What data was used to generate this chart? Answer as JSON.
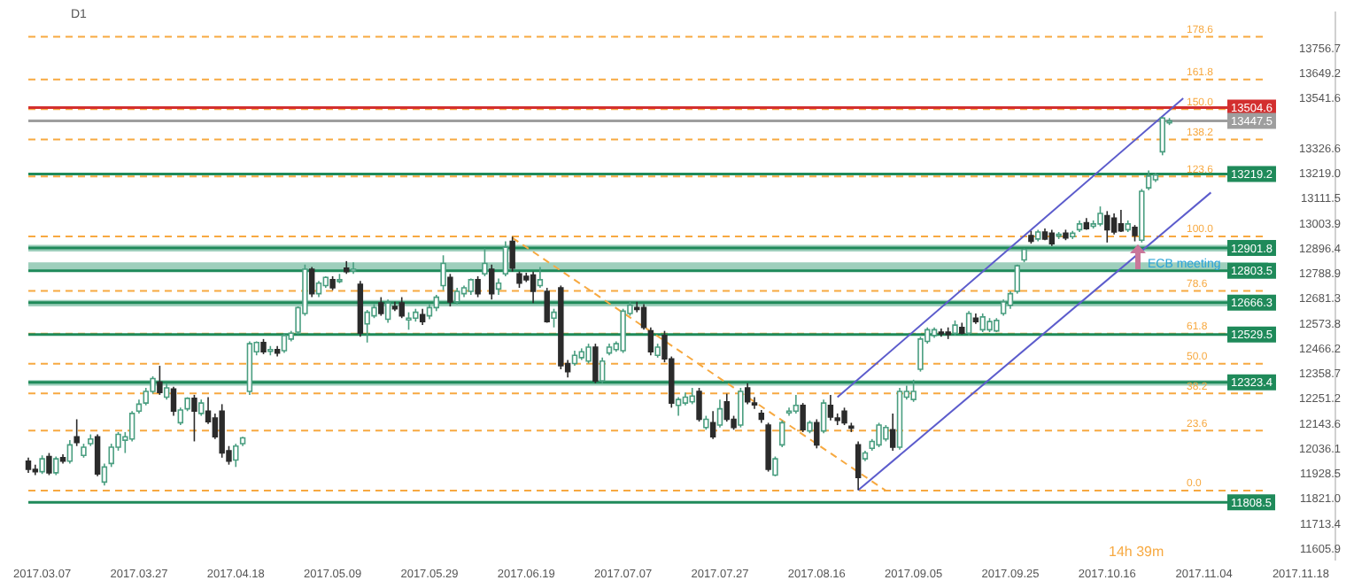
{
  "chart_data": {
    "type": "candlestick",
    "categories": [
      null,
      null,
      "2017.03.07",
      null,
      null,
      null,
      null,
      null,
      null,
      null,
      null,
      null,
      null,
      null,
      null,
      null,
      "2017.03.27",
      null,
      null,
      null,
      null,
      null,
      null,
      null,
      null,
      null,
      null,
      null,
      null,
      null,
      "2017.04.18",
      null,
      null,
      null,
      null,
      null,
      null,
      null,
      null,
      null,
      null,
      null,
      null,
      null,
      "2017.05.09",
      null,
      null,
      null,
      null,
      null,
      null,
      null,
      null,
      null,
      null,
      null,
      null,
      null,
      "2017.05.29",
      null,
      null,
      null,
      null,
      null,
      null,
      null,
      null,
      null,
      null,
      null,
      null,
      null,
      "2017.06.19",
      null,
      null,
      null,
      null,
      null,
      null,
      null,
      null,
      null,
      null,
      null,
      null,
      null,
      "2017.07.07",
      null,
      null,
      null,
      null,
      null,
      null,
      null,
      null,
      null,
      null,
      null,
      null,
      null,
      "2017.07.27",
      null,
      null,
      null,
      null,
      null,
      null,
      null,
      null,
      null,
      null,
      null,
      null,
      null,
      "2017.08.16",
      null,
      null,
      null,
      null,
      null,
      null,
      null,
      null,
      null,
      null,
      null,
      null,
      null,
      "2017.09.05",
      null,
      null,
      null,
      null,
      null,
      null,
      null,
      null,
      null,
      null,
      null,
      null,
      null,
      "2017.09.25",
      null,
      null,
      null,
      null,
      null,
      null,
      null,
      null,
      null,
      null,
      null,
      null,
      null,
      "2017.10.16",
      null,
      null,
      null,
      null,
      null,
      null,
      null,
      null,
      null,
      null,
      null,
      null,
      null,
      "2017.11.04",
      null,
      null,
      null,
      null,
      null,
      null,
      null,
      null,
      null,
      null,
      null,
      null,
      null,
      "2017.11.18",
      null,
      null,
      null,
      null,
      null
    ],
    "ohlc": [
      [
        11985,
        12000,
        11935,
        11950
      ],
      [
        11950,
        11970,
        11925,
        11940
      ],
      [
        11940,
        12010,
        11930,
        11995
      ],
      [
        12005,
        12020,
        11925,
        11935
      ],
      [
        11935,
        12005,
        11925,
        11995
      ],
      [
        12000,
        12015,
        11975,
        11985
      ],
      [
        11985,
        12075,
        11975,
        12055
      ],
      [
        12090,
        12165,
        12050,
        12065
      ],
      [
        12010,
        12060,
        12000,
        12045
      ],
      [
        12060,
        12100,
        12050,
        12080
      ],
      [
        12090,
        12100,
        11920,
        11930
      ],
      [
        11895,
        11975,
        11880,
        11960
      ],
      [
        11975,
        12060,
        11960,
        12045
      ],
      [
        12045,
        12110,
        12030,
        12100
      ],
      [
        12075,
        12110,
        12020,
        12090
      ],
      [
        12080,
        12200,
        12070,
        12190
      ],
      [
        12200,
        12250,
        12190,
        12230
      ],
      [
        12235,
        12300,
        12225,
        12285
      ],
      [
        12285,
        12350,
        12275,
        12340
      ],
      [
        12325,
        12395,
        12270,
        12280
      ],
      [
        12260,
        12320,
        12250,
        12300
      ],
      [
        12295,
        12305,
        12180,
        12200
      ],
      [
        12150,
        12215,
        12140,
        12205
      ],
      [
        12210,
        12260,
        12200,
        12255
      ],
      [
        12255,
        12270,
        12070,
        12200
      ],
      [
        12190,
        12250,
        12180,
        12235
      ],
      [
        12200,
        12260,
        12145,
        12155
      ],
      [
        12170,
        12190,
        12080,
        12090
      ],
      [
        12200,
        12230,
        12000,
        12020
      ],
      [
        12030,
        12050,
        11970,
        11985
      ],
      [
        11990,
        12060,
        11960,
        12050
      ],
      [
        12060,
        12090,
        12050,
        12085
      ],
      [
        12285,
        12500,
        12270,
        12490
      ],
      [
        12455,
        12500,
        12440,
        12495
      ],
      [
        12495,
        12510,
        12445,
        12455
      ],
      [
        12460,
        12480,
        12440,
        12465
      ],
      [
        12465,
        12480,
        12435,
        12450
      ],
      [
        12460,
        12535,
        12450,
        12525
      ],
      [
        12510,
        12545,
        12500,
        12535
      ],
      [
        12540,
        12650,
        12530,
        12645
      ],
      [
        12620,
        12830,
        12610,
        12810
      ],
      [
        12810,
        12820,
        12690,
        12705
      ],
      [
        12705,
        12760,
        12690,
        12750
      ],
      [
        12740,
        12780,
        12730,
        12775
      ],
      [
        12765,
        12780,
        12720,
        12730
      ],
      [
        12760,
        12790,
        12750,
        12765
      ],
      [
        12815,
        12845,
        12790,
        12800
      ],
      [
        12805,
        12840,
        12790,
        12810
      ],
      [
        12745,
        12760,
        12520,
        12535
      ],
      [
        12575,
        12635,
        12495,
        12625
      ],
      [
        12610,
        12660,
        12600,
        12645
      ],
      [
        12665,
        12690,
        12610,
        12620
      ],
      [
        12595,
        12680,
        12580,
        12665
      ],
      [
        12650,
        12670,
        12630,
        12640
      ],
      [
        12665,
        12690,
        12600,
        12610
      ],
      [
        12600,
        12625,
        12550,
        12600
      ],
      [
        12600,
        12640,
        12585,
        12625
      ],
      [
        12615,
        12640,
        12570,
        12585
      ],
      [
        12610,
        12660,
        12595,
        12645
      ],
      [
        12645,
        12700,
        12630,
        12690
      ],
      [
        12740,
        12870,
        12720,
        12835
      ],
      [
        12775,
        12790,
        12650,
        12670
      ],
      [
        12670,
        12730,
        12660,
        12715
      ],
      [
        12705,
        12740,
        12690,
        12730
      ],
      [
        12715,
        12770,
        12700,
        12765
      ],
      [
        12765,
        12780,
        12690,
        12705
      ],
      [
        12790,
        12900,
        12780,
        12835
      ],
      [
        12810,
        12830,
        12680,
        12705
      ],
      [
        12725,
        12770,
        12700,
        12750
      ],
      [
        12790,
        12930,
        12780,
        12905
      ],
      [
        12930,
        12950,
        12800,
        12815
      ],
      [
        12790,
        12800,
        12730,
        12750
      ],
      [
        12780,
        12795,
        12755,
        12765
      ],
      [
        12785,
        12800,
        12665,
        12715
      ],
      [
        12740,
        12820,
        12730,
        12765
      ],
      [
        12715,
        12730,
        12580,
        12585
      ],
      [
        12600,
        12640,
        12560,
        12625
      ],
      [
        12730,
        12740,
        12380,
        12395
      ],
      [
        12405,
        12420,
        12345,
        12370
      ],
      [
        12405,
        12460,
        12395,
        12440
      ],
      [
        12430,
        12470,
        12420,
        12455
      ],
      [
        12415,
        12490,
        12405,
        12475
      ],
      [
        12475,
        12490,
        12320,
        12330
      ],
      [
        12330,
        12430,
        12320,
        12415
      ],
      [
        12450,
        12490,
        12440,
        12475
      ],
      [
        12465,
        12500,
        12455,
        12490
      ],
      [
        12460,
        12640,
        12450,
        12630
      ],
      [
        12620,
        12670,
        12610,
        12655
      ],
      [
        12645,
        12670,
        12625,
        12640
      ],
      [
        12645,
        12660,
        12550,
        12560
      ],
      [
        12545,
        12560,
        12440,
        12455
      ],
      [
        12440,
        12490,
        12430,
        12475
      ],
      [
        12525,
        12545,
        12410,
        12425
      ],
      [
        12425,
        12435,
        12215,
        12235
      ],
      [
        12225,
        12260,
        12180,
        12250
      ],
      [
        12235,
        12280,
        12225,
        12260
      ],
      [
        12240,
        12300,
        12230,
        12265
      ],
      [
        12285,
        12300,
        12155,
        12165
      ],
      [
        12130,
        12180,
        12120,
        12165
      ],
      [
        12150,
        12200,
        12080,
        12090
      ],
      [
        12140,
        12250,
        12130,
        12210
      ],
      [
        12240,
        12275,
        12155,
        12165
      ],
      [
        12165,
        12180,
        12120,
        12130
      ],
      [
        12140,
        12300,
        12130,
        12285
      ],
      [
        12300,
        12320,
        12230,
        12240
      ],
      [
        12235,
        12260,
        12210,
        12230
      ],
      [
        12190,
        12205,
        12150,
        12165
      ],
      [
        12140,
        12150,
        11940,
        11950
      ],
      [
        11925,
        12005,
        11920,
        11995
      ],
      [
        12055,
        12160,
        12045,
        12150
      ],
      [
        12195,
        12215,
        12180,
        12200
      ],
      [
        12200,
        12270,
        12190,
        12225
      ],
      [
        12225,
        12235,
        12110,
        12120
      ],
      [
        12115,
        12160,
        12105,
        12150
      ],
      [
        12150,
        12165,
        12040,
        12055
      ],
      [
        12115,
        12250,
        12105,
        12235
      ],
      [
        12225,
        12270,
        12160,
        12175
      ],
      [
        12170,
        12190,
        12140,
        12160
      ],
      [
        12200,
        12215,
        12140,
        12150
      ],
      [
        12135,
        12150,
        12110,
        12130
      ],
      [
        12055,
        12070,
        11860,
        11915
      ],
      [
        11995,
        12030,
        11985,
        12020
      ],
      [
        12040,
        12080,
        12030,
        12070
      ],
      [
        12055,
        12150,
        12045,
        12140
      ],
      [
        12080,
        12140,
        12070,
        12130
      ],
      [
        12120,
        12190,
        12030,
        12045
      ],
      [
        12045,
        12300,
        12035,
        12285
      ],
      [
        12260,
        12310,
        12250,
        12285
      ],
      [
        12250,
        12335,
        12240,
        12285
      ],
      [
        12380,
        12520,
        12370,
        12510
      ],
      [
        12500,
        12560,
        12490,
        12550
      ],
      [
        12525,
        12560,
        12515,
        12550
      ],
      [
        12540,
        12555,
        12520,
        12535
      ],
      [
        12540,
        12560,
        12510,
        12530
      ],
      [
        12535,
        12590,
        12525,
        12570
      ],
      [
        12560,
        12580,
        12530,
        12535
      ],
      [
        12535,
        12630,
        12525,
        12620
      ],
      [
        12600,
        12620,
        12575,
        12585
      ],
      [
        12550,
        12620,
        12540,
        12605
      ],
      [
        12550,
        12600,
        12540,
        12585
      ],
      [
        12545,
        12600,
        12540,
        12590
      ],
      [
        12620,
        12680,
        12610,
        12670
      ],
      [
        12655,
        12715,
        12640,
        12705
      ],
      [
        12715,
        12830,
        12705,
        12825
      ],
      [
        12850,
        12900,
        12840,
        12895
      ],
      [
        12955,
        12975,
        12920,
        12930
      ],
      [
        12940,
        12980,
        12930,
        12970
      ],
      [
        12970,
        12985,
        12935,
        12940
      ],
      [
        12965,
        12980,
        12910,
        12920
      ],
      [
        12955,
        12970,
        12940,
        12960
      ],
      [
        12965,
        12980,
        12935,
        12945
      ],
      [
        12950,
        12975,
        12940,
        12965
      ],
      [
        12980,
        13020,
        12970,
        13005
      ],
      [
        13010,
        13030,
        12980,
        12985
      ],
      [
        12995,
        13020,
        12985,
        13005
      ],
      [
        13005,
        13080,
        12995,
        13050
      ],
      [
        13040,
        13060,
        12925,
        12980
      ],
      [
        13030,
        13050,
        12960,
        12970
      ],
      [
        13005,
        13065,
        12970,
        12975
      ],
      [
        12980,
        13020,
        12970,
        13005
      ],
      [
        12990,
        13000,
        12930,
        12955
      ],
      [
        12935,
        13155,
        12925,
        13145
      ],
      [
        13160,
        13235,
        13150,
        13210
      ],
      [
        13195,
        13225,
        13185,
        13215
      ],
      [
        13315,
        13465,
        13300,
        13460
      ],
      [
        13440,
        13460,
        13430,
        13447.5
      ],
      null,
      null,
      null,
      null,
      null,
      null,
      null,
      null,
      null,
      null,
      null,
      null,
      null,
      null,
      null,
      null,
      null,
      null,
      null,
      null,
      null,
      null,
      null,
      null
    ],
    "series": [
      {
        "type": "line",
        "color": "#5c5ccc",
        "values": [
          null,
          null,
          null,
          null,
          null,
          null,
          null,
          null,
          null,
          null,
          null,
          null,
          null,
          null,
          null,
          null,
          null,
          null,
          null,
          null,
          null,
          null,
          null,
          null,
          null,
          null,
          null,
          null,
          null,
          null,
          null,
          null,
          null,
          null,
          null,
          null,
          null,
          null,
          null,
          null,
          null,
          null,
          null,
          null,
          null,
          null,
          null,
          null,
          null,
          null,
          null,
          null,
          null,
          null,
          null,
          null,
          null,
          null,
          null,
          null,
          null,
          null,
          null,
          null,
          null,
          null,
          null,
          null,
          null,
          null,
          null,
          null,
          null,
          null,
          null,
          null,
          null,
          null,
          null,
          null,
          null,
          null,
          null,
          null,
          null,
          null,
          null,
          null,
          null,
          null,
          null,
          null,
          null,
          null,
          null,
          null,
          null,
          null,
          null,
          null,
          null,
          null,
          null,
          null,
          null,
          null,
          null,
          null,
          null,
          null,
          null,
          null,
          null,
          null,
          null,
          null,
          null,
          12260,
          null,
          null,
          null,
          null,
          null,
          null,
          null,
          null,
          null,
          null,
          null,
          null,
          null,
          null,
          null,
          null,
          null,
          null,
          null,
          null,
          null,
          null,
          null,
          null,
          null,
          null,
          null,
          null,
          null,
          null,
          null,
          null,
          null,
          null,
          null,
          null,
          null,
          null,
          null,
          null,
          null,
          null,
          null,
          null,
          null,
          null,
          null,
          null,
          null,
          13545,
          null,
          null,
          null,
          null,
          null,
          null,
          null,
          null,
          null,
          null,
          null,
          null,
          null,
          null,
          null,
          null,
          null,
          null,
          null,
          null,
          null,
          null
        ]
      },
      {
        "type": "line",
        "color": "#5c5ccc",
        "values": [
          null,
          null,
          null,
          null,
          null,
          null,
          null,
          null,
          null,
          null,
          null,
          null,
          null,
          null,
          null,
          null,
          null,
          null,
          null,
          null,
          null,
          null,
          null,
          null,
          null,
          null,
          null,
          null,
          null,
          null,
          null,
          null,
          null,
          null,
          null,
          null,
          null,
          null,
          null,
          null,
          null,
          null,
          null,
          null,
          null,
          null,
          null,
          null,
          null,
          null,
          null,
          null,
          null,
          null,
          null,
          null,
          null,
          null,
          null,
          null,
          null,
          null,
          null,
          null,
          null,
          null,
          null,
          null,
          null,
          null,
          null,
          null,
          null,
          null,
          null,
          null,
          null,
          null,
          null,
          null,
          null,
          null,
          null,
          null,
          null,
          null,
          null,
          null,
          null,
          null,
          null,
          null,
          null,
          null,
          null,
          null,
          null,
          null,
          null,
          null,
          null,
          null,
          null,
          null,
          null,
          null,
          null,
          null,
          null,
          null,
          null,
          null,
          null,
          null,
          null,
          null,
          null,
          null,
          null,
          null,
          11860,
          null,
          null,
          null,
          null,
          null,
          null,
          null,
          null,
          null,
          null,
          null,
          null,
          null,
          null,
          null,
          null,
          null,
          null,
          null,
          null,
          null,
          null,
          null,
          null,
          null,
          null,
          null,
          null,
          null,
          null,
          null,
          null,
          null,
          null,
          null,
          null,
          null,
          null,
          null,
          null,
          null,
          null,
          null,
          null,
          null,
          null,
          null,
          null,
          null,
          null,
          13140,
          null,
          null,
          null,
          null,
          null,
          null,
          null,
          null,
          null,
          null,
          null,
          null,
          null,
          null,
          null,
          null,
          null,
          null
        ]
      },
      {
        "type": "line",
        "color": "#f7a941",
        "line_style": "dashed",
        "values": [
          null,
          null,
          null,
          null,
          null,
          null,
          null,
          null,
          null,
          null,
          null,
          null,
          null,
          null,
          null,
          null,
          null,
          null,
          null,
          null,
          null,
          null,
          null,
          null,
          null,
          null,
          null,
          null,
          null,
          null,
          null,
          null,
          null,
          null,
          null,
          null,
          null,
          null,
          null,
          null,
          null,
          null,
          null,
          null,
          null,
          null,
          null,
          null,
          null,
          null,
          null,
          null,
          null,
          null,
          null,
          null,
          null,
          null,
          null,
          null,
          null,
          null,
          null,
          null,
          null,
          null,
          null,
          null,
          null,
          null,
          12945,
          null,
          null,
          null,
          null,
          null,
          null,
          null,
          null,
          null,
          null,
          null,
          null,
          null,
          null,
          null,
          null,
          null,
          null,
          null,
          null,
          null,
          null,
          null,
          null,
          null,
          null,
          null,
          null,
          null,
          null,
          null,
          null,
          null,
          null,
          null,
          null,
          null,
          null,
          null,
          null,
          null,
          null,
          null,
          null,
          null,
          null,
          null,
          null,
          null,
          null,
          null,
          null,
          null,
          11858,
          null,
          null,
          null,
          null,
          null,
          null,
          null,
          null,
          null,
          null,
          null,
          null,
          null,
          null,
          null,
          null,
          null,
          null,
          null,
          null,
          null,
          null,
          null,
          null,
          null,
          null,
          null,
          null,
          null,
          null,
          null,
          null,
          null,
          null,
          null,
          null,
          null,
          null,
          null,
          null,
          null,
          null,
          null,
          null,
          null,
          null,
          null,
          null,
          null,
          null,
          null,
          null,
          null,
          null,
          null,
          null,
          null,
          null,
          null,
          null,
          null,
          null,
          null,
          null,
          null
        ]
      }
    ],
    "ylim": [
      11560,
      13915
    ],
    "yticks": [
      11605.9,
      11713.4,
      {
        "value": 11821,
        "label": "11821.0"
      },
      11928.5,
      12036.1,
      12143.6,
      12251.2,
      12358.7,
      12466.2,
      12573.8,
      12681.3,
      12788.9,
      12896.4,
      13003.9,
      13111.5,
      {
        "value": 13219,
        "label": "13219.0"
      },
      13326.6,
      13541.6,
      13649.2,
      13756.7
    ],
    "ref_lines": [
      {
        "axis": "y",
        "value": 13810,
        "color": "#f7a941",
        "line_style": "dashed"
      },
      {
        "axis": "y",
        "value": 13626,
        "color": "#f7a941",
        "line_style": "dashed"
      },
      {
        "axis": "y",
        "value": 13498,
        "color": "#f7a941",
        "line_style": "dashed"
      },
      {
        "axis": "y",
        "value": 13368,
        "color": "#f7a941",
        "line_style": "dashed"
      },
      {
        "axis": "y",
        "value": 13209,
        "color": "#f7a941",
        "line_style": "dashed"
      },
      {
        "axis": "y",
        "value": 12951,
        "color": "#f7a941",
        "line_style": "dashed"
      },
      {
        "axis": "y",
        "value": 12717,
        "color": "#f7a941",
        "line_style": "dashed"
      },
      {
        "axis": "y",
        "value": 12533,
        "color": "#f7a941",
        "line_style": "dashed"
      },
      {
        "axis": "y",
        "value": 12404,
        "color": "#f7a941",
        "line_style": "dashed"
      },
      {
        "axis": "y",
        "value": 12276,
        "color": "#f7a941",
        "line_style": "dashed"
      },
      {
        "axis": "y",
        "value": 12116,
        "color": "#f7a941",
        "line_style": "dashed"
      },
      {
        "axis": "y",
        "value": 11858,
        "color": "#f7a941",
        "line_style": "dashed"
      },
      {
        "axis": "y",
        "value": 13504.6,
        "label": "13504.6",
        "color": "#d32f2f",
        "line_style": "solid"
      },
      {
        "axis": "y",
        "value": 13447.5,
        "label": "13447.5",
        "color": "#9e9e9e",
        "line_style": "solid"
      },
      {
        "axis": "y",
        "value": 13219.2,
        "label": "13219.2",
        "color": "#1f8a5a",
        "line_style": "solid"
      },
      {
        "axis": "y",
        "value": 12901.8,
        "label": "12901.8",
        "color": "#1f8a5a",
        "line_style": "solid"
      },
      {
        "axis": "y",
        "value": 12803.5,
        "label": "12803.5",
        "color": "#1f8a5a",
        "line_style": "solid"
      },
      {
        "axis": "y",
        "value": 12666.3,
        "label": "12666.3",
        "color": "#1f8a5a",
        "line_style": "solid"
      },
      {
        "axis": "y",
        "value": 12529.5,
        "label": "12529.5",
        "color": "#1f8a5a",
        "line_style": "solid"
      },
      {
        "axis": "y",
        "value": 12323.4,
        "label": "12323.4",
        "color": "#1f8a5a",
        "line_style": "solid"
      },
      {
        "axis": "y",
        "value": 11808.5,
        "label": "11808.5",
        "color": "#1f8a5a",
        "line_style": "solid"
      }
    ],
    "bands": [
      {
        "axis": "y",
        "from": 12886,
        "to": 12915,
        "color": "#7dbfa5"
      },
      {
        "axis": "y",
        "from": 12805,
        "to": 12840,
        "color": "#7dbfa5"
      },
      {
        "axis": "y",
        "from": 12650,
        "to": 12678,
        "color": "#7dbfa5"
      },
      {
        "axis": "y",
        "from": 12310,
        "to": 12333,
        "color": "#7dbfa5"
      }
    ],
    "annotations": [
      "D1",
      "ECB meeting",
      "14h 39m",
      {
        "text": "178.6",
        "y": 13810
      },
      {
        "text": "161.8",
        "y": 13626
      },
      {
        "text": "150.0",
        "y": 13498
      },
      {
        "text": "138.2",
        "y": 13368
      },
      {
        "text": "123.6",
        "y": 13209
      },
      {
        "text": "100.0",
        "y": 12951
      },
      {
        "text": "78.6",
        "y": 12717
      },
      {
        "text": "61.8",
        "y": 12533
      },
      {
        "text": "50.0",
        "y": 12404
      },
      {
        "text": "38.2",
        "y": 12276
      },
      {
        "text": "23.6",
        "y": 12116
      },
      {
        "text": "0.0",
        "y": 11858
      }
    ],
    "grid": false,
    "legend": false
  }
}
